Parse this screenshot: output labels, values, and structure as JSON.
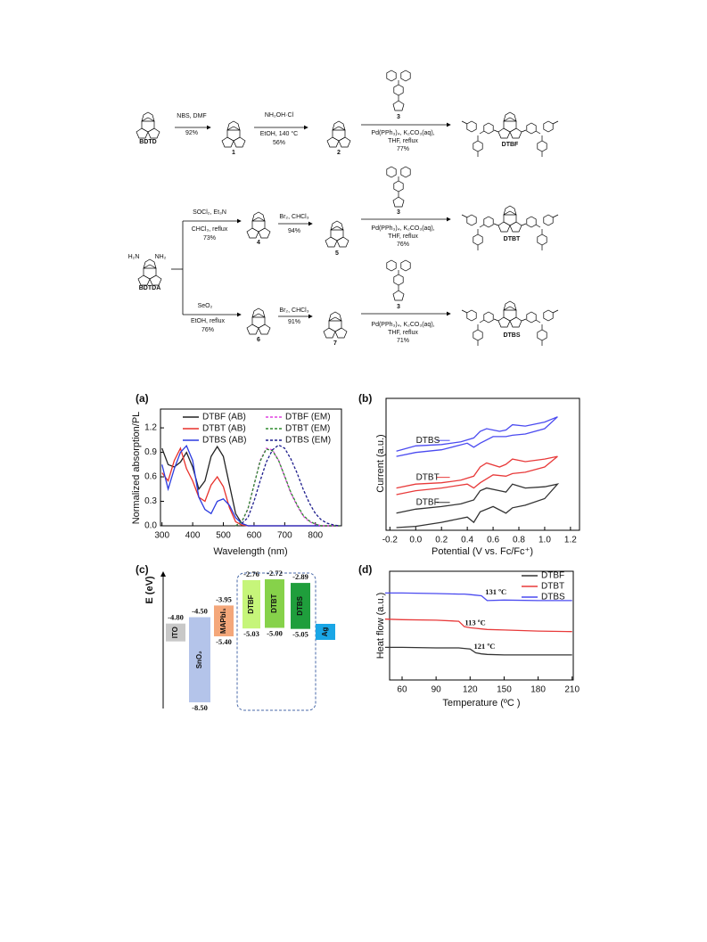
{
  "scheme": {
    "conditions": [
      "NBS, DMF",
      "92%",
      "NH₂OH·Cl",
      "EtOH, 140 °C",
      "56%",
      "Pd(PPh₃)₄, K₂CO₃(aq),",
      "THF, reflux",
      "77%",
      "SOCl₂, Et₃N",
      "CHCl₃, reflux",
      "73%",
      "Br₂, CHCl₃",
      "94%",
      "Pd(PPh₃)₄, K₂CO₃(aq),",
      "THF, reflux",
      "76%",
      "SeO₂",
      "EtOH, reflux",
      "76%",
      "Br₂, CHCl₃",
      "91%",
      "Pd(PPh₃)₄, K₂CO₃(aq),",
      "THF, reflux",
      "71%"
    ],
    "compounds": [
      "BDTD",
      "1",
      "2",
      "3",
      "DTBF",
      "H₂N",
      "NH₂",
      "BDTDA",
      "4",
      "5",
      "3",
      "DTBT",
      "6",
      "7",
      "3",
      "DTBS"
    ]
  },
  "panel_labels": [
    "(a)",
    "(b)",
    "(c)",
    "(d)"
  ],
  "chart_data": [
    {
      "type": "line",
      "x_label": "Wavelength (nm)",
      "y_label": "Normalized absorption/PL",
      "x": [
        300,
        320,
        340,
        360,
        380,
        400,
        420,
        440,
        460,
        480,
        500,
        520,
        540,
        560,
        580,
        600,
        620,
        640,
        660,
        680,
        700,
        720,
        740,
        760,
        780,
        800,
        820,
        840,
        860,
        880
      ],
      "xlim": [
        295,
        885
      ],
      "ylim": [
        0,
        1.43
      ],
      "xticks": [
        300,
        400,
        500,
        600,
        700,
        800
      ],
      "yticks": [
        {
          "value": 0,
          "label": "0.0"
        },
        0.3,
        0.6,
        0.9,
        1.2
      ],
      "legend": "upper right",
      "series": [
        {
          "name": "DTBF (AB)",
          "color": "#222222",
          "dashed": false,
          "values": [
            0.95,
            0.75,
            0.72,
            0.78,
            0.9,
            0.72,
            0.45,
            0.55,
            0.85,
            0.97,
            0.85,
            0.5,
            0.15,
            0.03,
            0,
            0,
            0,
            0,
            0,
            0,
            0,
            0,
            0,
            0,
            0,
            0,
            0,
            0,
            0,
            0
          ]
        },
        {
          "name": "DTBT (AB)",
          "color": "#e8302a",
          "dashed": false,
          "values": [
            0.65,
            0.55,
            0.8,
            0.95,
            0.7,
            0.55,
            0.35,
            0.3,
            0.5,
            0.6,
            0.48,
            0.22,
            0.05,
            0.01,
            0,
            0,
            0,
            0,
            0,
            0,
            0,
            0,
            0,
            0,
            0,
            0,
            0,
            0,
            0,
            0
          ]
        },
        {
          "name": "DTBS (AB)",
          "color": "#2b3be0",
          "dashed": false,
          "values": [
            0.75,
            0.45,
            0.7,
            0.9,
            0.98,
            0.8,
            0.35,
            0.2,
            0.15,
            0.3,
            0.33,
            0.25,
            0.1,
            0.03,
            0,
            0,
            0,
            0,
            0,
            0,
            0,
            0,
            0,
            0,
            0,
            0,
            0,
            0,
            0,
            0
          ]
        },
        {
          "name": "DTBF (EM)",
          "color": "#e040e0",
          "dashed": true,
          "values": [
            null,
            null,
            null,
            null,
            null,
            null,
            null,
            null,
            null,
            null,
            null,
            null,
            0,
            0.05,
            0.2,
            0.5,
            0.8,
            0.95,
            0.93,
            0.8,
            0.6,
            0.4,
            0.25,
            0.12,
            0.05,
            0.02,
            0,
            0,
            0,
            0
          ]
        },
        {
          "name": "DTBT (EM)",
          "color": "#2e8b2e",
          "dashed": true,
          "values": [
            null,
            null,
            null,
            null,
            null,
            null,
            null,
            null,
            null,
            null,
            null,
            null,
            0,
            0.05,
            0.21,
            0.5,
            0.79,
            0.94,
            0.92,
            0.8,
            0.61,
            0.41,
            0.26,
            0.13,
            0.06,
            0.02,
            0,
            0,
            0,
            0
          ]
        },
        {
          "name": "DTBS (EM)",
          "color": "#1c1c8c",
          "dashed": true,
          "values": [
            null,
            null,
            null,
            null,
            null,
            null,
            null,
            null,
            null,
            null,
            null,
            null,
            null,
            0.03,
            0.1,
            0.3,
            0.55,
            0.78,
            0.93,
            0.99,
            0.95,
            0.82,
            0.65,
            0.45,
            0.28,
            0.15,
            0.07,
            0.03,
            0.01,
            0
          ]
        }
      ]
    },
    {
      "type": "line",
      "x_label": "Potential (V vs. Fc/Fc⁺)",
      "y_label": "Current (a.u.)",
      "x": [
        -0.15,
        0.0,
        0.2,
        0.35,
        0.45,
        0.5,
        0.55,
        0.65,
        0.7,
        0.75,
        0.85,
        1.0,
        1.1,
        1.0,
        0.85,
        0.75,
        0.7,
        0.6,
        0.5,
        0.45,
        0.4,
        0.2,
        0.0,
        -0.15
      ],
      "xlim": [
        -0.23,
        1.27
      ],
      "ylim": [
        0,
        10
      ],
      "xticks": [
        -0.2,
        {
          "value": 0,
          "label": "0.0"
        },
        0.2,
        0.4,
        0.6,
        0.8,
        {
          "value": 1,
          "label": "1.0"
        },
        1.2
      ],
      "series": [
        {
          "name": "DTBS",
          "color": "#4a4af0",
          "values": [
            6.0,
            6.4,
            6.5,
            6.7,
            7.0,
            7.5,
            7.7,
            7.5,
            7.6,
            8.0,
            7.9,
            8.2,
            8.6,
            7.7,
            7.3,
            7.2,
            7.1,
            7.1,
            6.6,
            6.3,
            6.6,
            6.1,
            5.9,
            5.6
          ]
        },
        {
          "name": "DTBT",
          "color": "#e83a3a",
          "values": [
            3.2,
            3.5,
            3.6,
            3.8,
            4.1,
            4.8,
            5.1,
            4.8,
            5.0,
            5.4,
            5.2,
            5.4,
            5.6,
            4.8,
            4.4,
            4.3,
            4.1,
            4.2,
            3.6,
            3.2,
            3.5,
            3.2,
            3.0,
            2.7
          ]
        },
        {
          "name": "DTBF",
          "color": "#333333",
          "values": [
            1.3,
            1.6,
            1.8,
            2.0,
            2.3,
            3.0,
            3.2,
            3.0,
            2.9,
            3.5,
            3.2,
            3.3,
            3.5,
            2.4,
            1.9,
            1.7,
            1.3,
            1.8,
            1.4,
            0.6,
            1.0,
            0.6,
            0.3,
            0.2
          ]
        }
      ]
    },
    {
      "type": "energy",
      "y_label": "E (eV)",
      "ylim": [
        -8.79,
        -2.3
      ],
      "categories": [
        "ITO",
        "SnO₂",
        "MAPbI₃",
        "DTBF",
        "DTBT",
        "DTBS",
        "Ag"
      ],
      "colors": [
        "#c8c8c8",
        "#b4c4ea",
        "#f4a77a",
        "#c6f57a",
        "#86d24a",
        "#1f9e3c",
        "#1aa6e6"
      ],
      "lumo": [
        -4.8,
        -4.5,
        -3.95,
        -2.76,
        -2.72,
        -2.89,
        null
      ],
      "lumo_labels": [
        "-4.80",
        "-4.50",
        "-3.95",
        "-2.76",
        "-2.72",
        "-2.89",
        null
      ],
      "homo": [
        null,
        -8.5,
        -5.4,
        -5.03,
        -5.0,
        -5.05,
        null
      ],
      "homo_labels": [
        null,
        "-8.50",
        "-5.40",
        "-5.03",
        "-5.00",
        "-5.05",
        null
      ]
    },
    {
      "type": "line",
      "x_label": "Temperature (ºC )",
      "y_label": "Heat flow (a.u.)",
      "x": [
        45,
        60,
        90,
        110,
        115,
        120,
        125,
        130,
        135,
        150,
        180,
        210
      ],
      "xlim": [
        49,
        211
      ],
      "ylim": [
        0,
        10
      ],
      "xticks": [
        60,
        90,
        120,
        150,
        180,
        210
      ],
      "legend": "upper right",
      "series": [
        {
          "name": "DTBF",
          "color": "#333333",
          "values": [
            3.0,
            3.0,
            2.95,
            2.95,
            2.9,
            2.85,
            2.5,
            2.4,
            2.35,
            2.3,
            2.3,
            2.3
          ],
          "transition": 121,
          "transition_label": "121 ºC"
        },
        {
          "name": "DTBT",
          "color": "#e83a3a",
          "values": [
            5.6,
            5.55,
            5.5,
            5.4,
            4.9,
            4.8,
            4.75,
            4.7,
            4.65,
            4.6,
            4.5,
            4.45
          ],
          "transition": 113,
          "transition_label": "113 ºC"
        },
        {
          "name": "DTBS",
          "color": "#4a4af0",
          "values": [
            8.0,
            8.0,
            7.95,
            7.9,
            7.9,
            7.85,
            7.8,
            7.75,
            7.3,
            7.35,
            7.3,
            7.3
          ],
          "transition": 131,
          "transition_label": "131 ºC"
        }
      ]
    }
  ]
}
